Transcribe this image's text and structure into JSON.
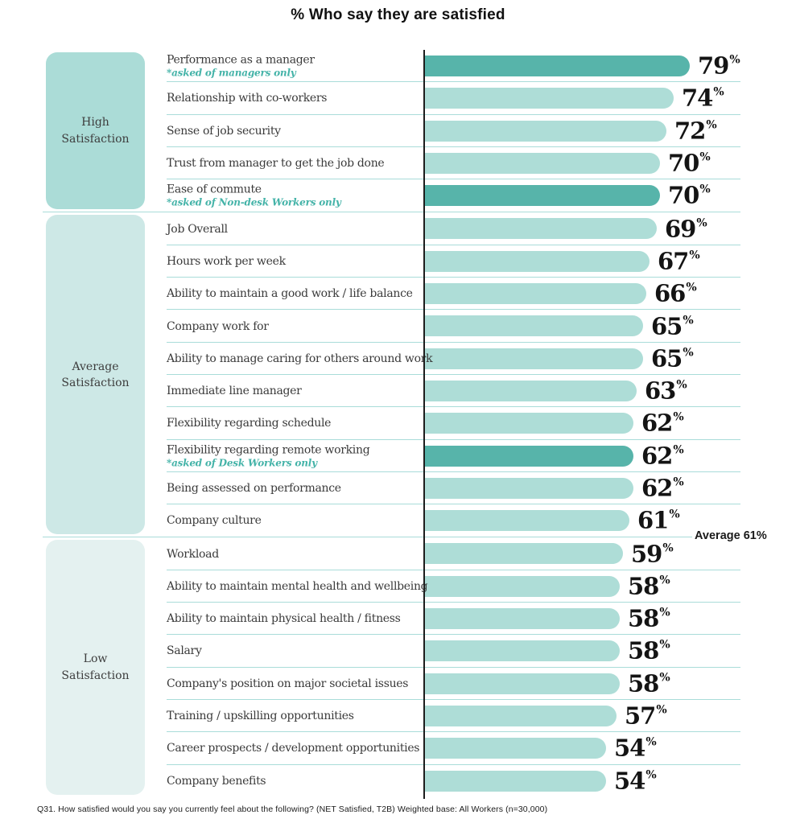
{
  "title": "% Who say they are satisfied",
  "average_label": "Average 61%",
  "percent_sign": "%",
  "footnote": "Q31. How satisfied would you say you currently feel about the following? (NET Satisfied, T2B) Weighted base: All Workers (n=30,000)",
  "colors": {
    "bar_light": "#aeddd7",
    "bar_dark": "#57b4aa",
    "note_teal": "#44b3a8",
    "separator": "#a9dcd9",
    "axis": "#1d1d1d",
    "group_box_high": "#abdcd7",
    "group_box_average": "#cde8e6",
    "group_box_low": "#e4f1f0",
    "label_text": "#3a3a3a",
    "value_text": "#141414"
  },
  "chart_data": {
    "type": "bar",
    "orientation": "horizontal",
    "title": "% Who say they are satisfied",
    "xlabel": "",
    "ylabel": "",
    "xlim": [
      0,
      100
    ],
    "average": 61,
    "legend": "none",
    "grid": "row-separators",
    "groups": [
      {
        "label": "High Satisfaction",
        "rows": [
          {
            "label": "Performance as a manager",
            "note": "*asked of managers only",
            "value": 79,
            "highlight": true
          },
          {
            "label": "Relationship with co-workers",
            "value": 74,
            "highlight": false
          },
          {
            "label": "Sense of job security",
            "value": 72,
            "highlight": false
          },
          {
            "label": "Trust from manager to get the job done",
            "value": 70,
            "highlight": false
          },
          {
            "label": "Ease of commute",
            "note": "*asked of Non-desk Workers only",
            "value": 70,
            "highlight": true
          }
        ]
      },
      {
        "label": "Average Satisfaction",
        "rows": [
          {
            "label": "Job Overall",
            "value": 69,
            "highlight": false
          },
          {
            "label": "Hours work per week",
            "value": 67,
            "highlight": false
          },
          {
            "label": "Ability to maintain a good work / life balance",
            "value": 66,
            "highlight": false
          },
          {
            "label": "Company work for",
            "value": 65,
            "highlight": false
          },
          {
            "label": "Ability to manage caring for others around work",
            "value": 65,
            "highlight": false
          },
          {
            "label": "Immediate line manager",
            "value": 63,
            "highlight": false
          },
          {
            "label": "Flexibility regarding schedule",
            "value": 62,
            "highlight": false
          },
          {
            "label": "Flexibility regarding remote working",
            "note": "*asked of Desk Workers only",
            "value": 62,
            "highlight": true
          },
          {
            "label": "Being assessed on performance",
            "value": 62,
            "highlight": false
          },
          {
            "label": "Company culture",
            "value": 61,
            "highlight": false
          }
        ]
      },
      {
        "label": "Low Satisfaction",
        "rows": [
          {
            "label": "Workload",
            "value": 59,
            "highlight": false
          },
          {
            "label": "Ability to maintain mental health and wellbeing",
            "value": 58,
            "highlight": false
          },
          {
            "label": "Ability to maintain physical health / fitness",
            "value": 58,
            "highlight": false
          },
          {
            "label": "Salary",
            "value": 58,
            "highlight": false
          },
          {
            "label": "Company's position on major societal issues",
            "value": 58,
            "highlight": false
          },
          {
            "label": "Training / upskilling opportunities",
            "value": 57,
            "highlight": false
          },
          {
            "label": "Career prospects / development opportunities",
            "value": 54,
            "highlight": false
          },
          {
            "label": "Company benefits",
            "value": 54,
            "highlight": false
          }
        ]
      }
    ]
  }
}
